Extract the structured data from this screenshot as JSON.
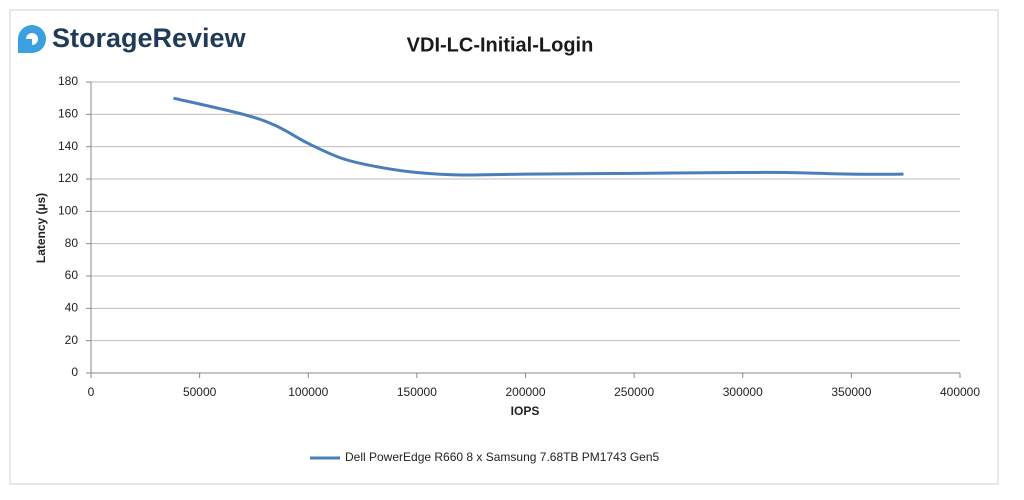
{
  "chart_data": {
    "type": "line",
    "logo": "StorageReview",
    "title": "VDI-LC-Initial-Login",
    "x_label": "IOPS",
    "y_label": "Latency (µs)",
    "xlim": [
      0,
      400000
    ],
    "xticks": [
      0,
      50000,
      100000,
      150000,
      200000,
      250000,
      300000,
      350000,
      400000
    ],
    "ylim": [
      0,
      180
    ],
    "yticks": [
      0,
      20,
      40,
      60,
      80,
      100,
      120,
      140,
      160,
      180
    ],
    "grid": true,
    "legend": "bottom",
    "series": [
      {
        "name": "Dell PowerEdge R660 8 x Samsung 7.68TB PM1743 Gen5",
        "color": "#4a7ebb",
        "x": [
          38000,
          70000,
          85000,
          100000,
          115000,
          130000,
          150000,
          170000,
          200000,
          250000,
          300000,
          320000,
          350000,
          374000
        ],
        "values": [
          170,
          160,
          153,
          142,
          133,
          128,
          124,
          122.5,
          123,
          123.5,
          124,
          124,
          123,
          123
        ]
      }
    ]
  }
}
